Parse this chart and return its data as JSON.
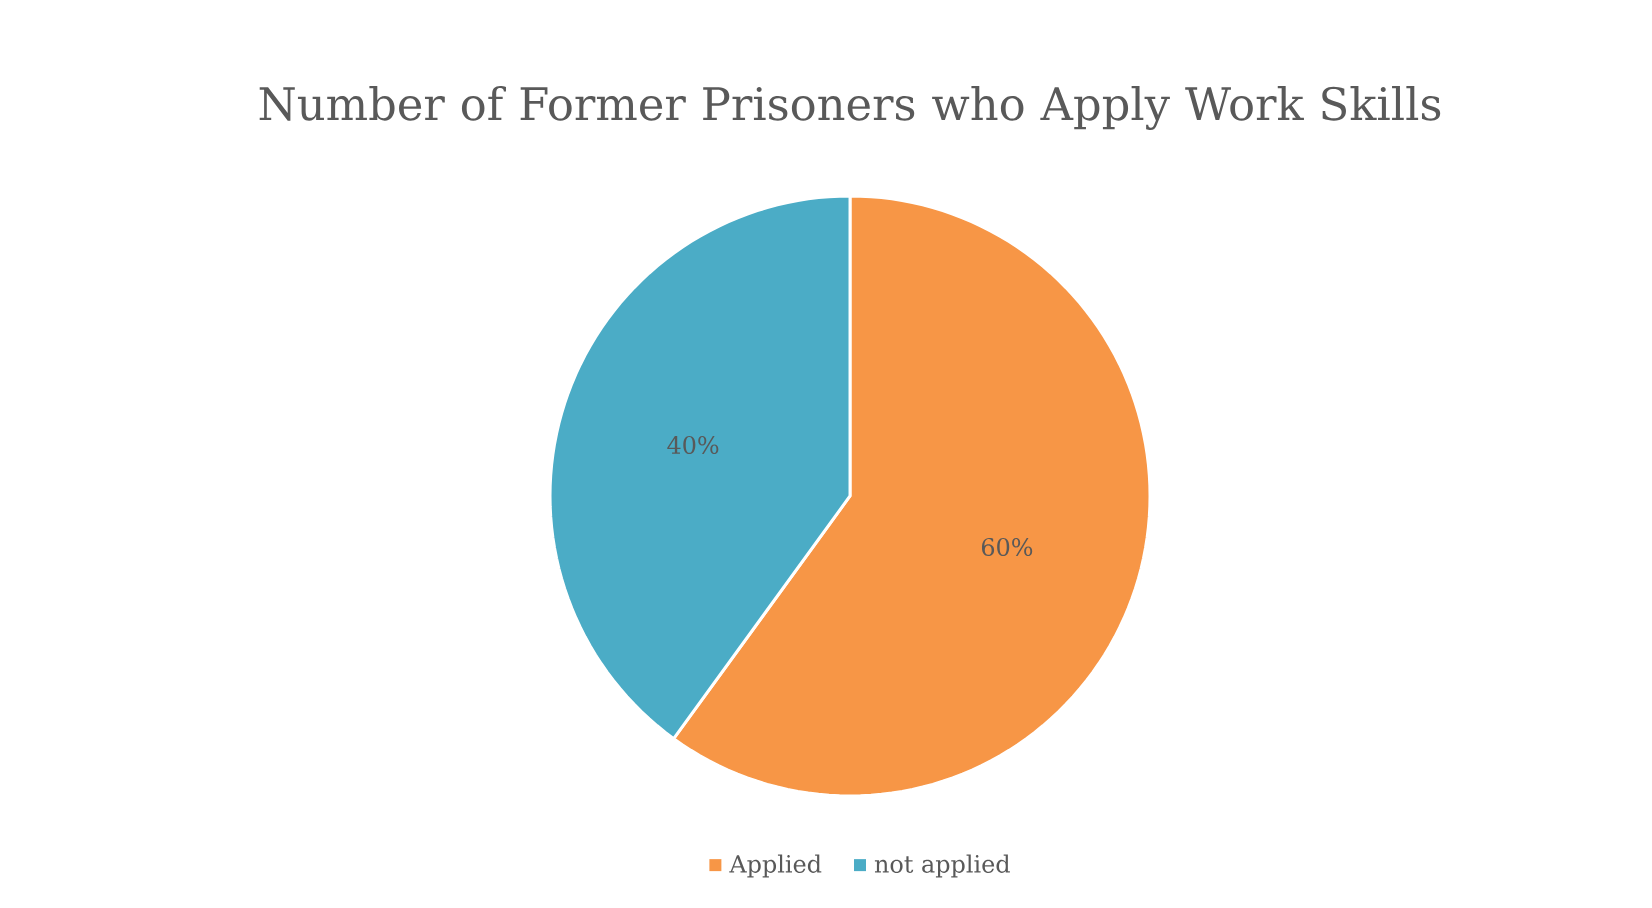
{
  "chart_data": {
    "type": "pie",
    "title": "Number of Former Prisoners who Apply Work Skills",
    "categories": [
      "Applied",
      "not applied"
    ],
    "values": [
      60,
      40
    ],
    "colors": [
      "#f79646",
      "#4bacc6"
    ],
    "value_labels": [
      "60%",
      "40%"
    ],
    "legend": "bottom"
  }
}
